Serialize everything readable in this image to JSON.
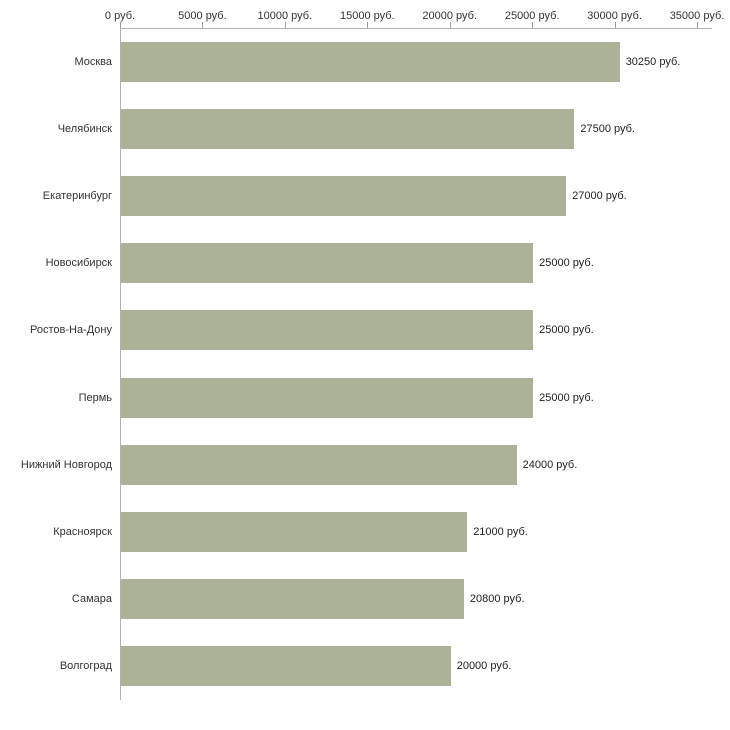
{
  "chart_data": {
    "type": "bar",
    "orientation": "horizontal",
    "title": "",
    "xlabel": "",
    "ylabel": "",
    "xlim": [
      0,
      35000
    ],
    "grid": false,
    "legend": false,
    "bar_color": "#abb297",
    "axis_color": "#b0b0b0",
    "categories": [
      "Москва",
      "Челябинск",
      "Екатеринбург",
      "Новосибирск",
      "Ростов-На-Дону",
      "Пермь",
      "Нижний Новгород",
      "Красноярск",
      "Самара",
      "Волгоград"
    ],
    "values": [
      30250,
      27500,
      27000,
      25000,
      25000,
      25000,
      24000,
      21000,
      20800,
      20000
    ],
    "value_labels": [
      "30250 руб.",
      "27500 руб.",
      "27000 руб.",
      "25000 руб.",
      "25000 руб.",
      "25000 руб.",
      "24000 руб.",
      "21000 руб.",
      "20800 руб.",
      "20000 руб."
    ],
    "x_ticks": [
      0,
      5000,
      10000,
      15000,
      20000,
      25000,
      30000,
      35000
    ],
    "x_tick_labels": [
      "0 руб.",
      "5000 руб.",
      "10000 руб.",
      "15000 руб.",
      "20000 руб.",
      "25000 руб.",
      "30000 руб.",
      "35000 руб."
    ]
  }
}
